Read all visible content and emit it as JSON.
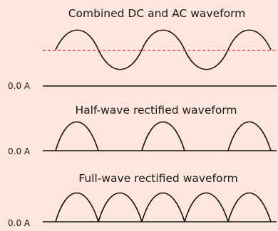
{
  "colors": {
    "background": "#fde6dc",
    "waveform": "#111111",
    "axis": "#111111",
    "dc_level": "#e0302a"
  },
  "panels": [
    {
      "id": "combined",
      "title": "Combined DC and AC waveform",
      "zero_label": "0.0 A",
      "wave_type": "combined",
      "show_dc_level": true
    },
    {
      "id": "half",
      "title": "Half-wave rectified waveform",
      "zero_label": "0.0 A",
      "wave_type": "half-wave",
      "show_dc_level": false
    },
    {
      "id": "full",
      "title": "Full-wave rectified waveform",
      "zero_label": "0.0 A",
      "wave_type": "full-wave",
      "show_dc_level": false
    }
  ]
}
